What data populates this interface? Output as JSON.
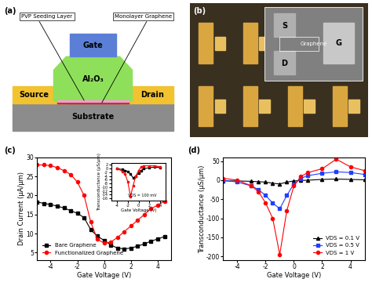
{
  "diagram": {
    "label": "(a)",
    "gate": "Gate",
    "dielectric": "Al₂O₃",
    "source": "Source",
    "drain": "Drain",
    "substrate": "Substrate",
    "seeding_layer": "PVP Seeding Layer",
    "channel": "Monolayer Graphene"
  },
  "micrograph": {
    "label": "(b)",
    "source": "S",
    "drain": "D",
    "gate": "G",
    "channel": "Graphene"
  },
  "chart_data": [
    {
      "type": "line",
      "annotation": "(c)",
      "x_label": "Gate Voltage (V)",
      "y_label": "Drain Current (μA/μm)",
      "xlim": [
        -5,
        5
      ],
      "xticks": [
        -4,
        -2,
        0,
        2,
        4
      ],
      "ylim": [
        3,
        30
      ],
      "yticks": [
        5,
        10,
        15,
        20,
        25,
        30
      ],
      "legend": "lower left",
      "x": [
        -5,
        -4.5,
        -4,
        -3.5,
        -3,
        -2.5,
        -2,
        -1.5,
        -1,
        -0.5,
        0,
        0.5,
        1,
        1.5,
        2,
        2.5,
        3,
        3.5,
        4,
        4.5
      ],
      "series": [
        {
          "name": "Bare Graphene",
          "color": "#000000",
          "marker": "square",
          "line_style": "solid",
          "values": [
            18.3,
            17.9,
            17.6,
            17.2,
            16.7,
            16.0,
            15.3,
            14.2,
            11.0,
            9.3,
            8.2,
            7.0,
            6.2,
            6.0,
            6.2,
            6.7,
            7.3,
            8.0,
            8.6,
            9.2
          ]
        },
        {
          "name": "Functionalized Graphene",
          "color": "#ff0000",
          "marker": "circle",
          "line_style": "solid",
          "values": [
            28.0,
            28.0,
            27.8,
            27.3,
            26.5,
            25.5,
            23.5,
            20.0,
            13.0,
            8.5,
            7.5,
            7.8,
            9.0,
            10.5,
            12.0,
            13.5,
            15.0,
            16.5,
            17.5,
            18.5
          ]
        }
      ]
    },
    {
      "type": "line",
      "annotation": "VDS = 100 mV",
      "x_label": "Gate Voltage (V)",
      "y_label": "Transconductance (μS/μm)",
      "xlim": [
        -5,
        5
      ],
      "xticks": [
        -4,
        -2,
        0,
        2,
        4
      ],
      "ylim": [
        -17,
        3
      ],
      "yticks": [
        2,
        0,
        -2,
        -4,
        -6,
        -8,
        -10,
        -12,
        -14,
        -16
      ],
      "x": [
        -4,
        -3,
        -2.5,
        -2,
        -1.5,
        -1,
        -0.5,
        0,
        0.5,
        1,
        2,
        3,
        4
      ],
      "series": [
        {
          "color": "#000000",
          "marker": "square",
          "line_style": "solid",
          "values": [
            0,
            -0.5,
            -1.0,
            -1.5,
            -3.0,
            -5.0,
            -4.0,
            -2.5,
            -1.0,
            0,
            0.5,
            0.8,
            0.5
          ]
        },
        {
          "color": "#ff0000",
          "marker": "circle",
          "line_style": "solid",
          "values": [
            0,
            -1.5,
            -3.0,
            -7.0,
            -15.0,
            -9.0,
            -4.0,
            -1.0,
            1.0,
            1.5,
            1.5,
            1.5,
            1.0
          ]
        }
      ]
    },
    {
      "type": "line",
      "annotation": "(d)",
      "x_label": "Gate Voltage (V)",
      "y_label": "Transconductance (μS/μm)",
      "xlim": [
        -5,
        5
      ],
      "xticks": [
        -4,
        -2,
        0,
        2,
        4
      ],
      "ylim": [
        -210,
        60
      ],
      "yticks": [
        -200,
        -150,
        -100,
        -50,
        0,
        50
      ],
      "legend": "lower right",
      "x": [
        -5,
        -4,
        -3,
        -2.5,
        -2,
        -1.5,
        -1,
        -0.5,
        0,
        0.5,
        1,
        2,
        3,
        4,
        5
      ],
      "series": [
        {
          "name": "VDS = 0.1 V",
          "color": "#000000",
          "marker": "triangle",
          "line_style": "solid",
          "values": [
            -2,
            -2,
            -3,
            -4,
            -5,
            -8,
            -10,
            -5,
            -2,
            -1,
            0,
            2,
            3,
            2,
            1
          ]
        },
        {
          "name": "VDS = 0.5 V",
          "color": "#1f3fff",
          "marker": "square",
          "line_style": "solid",
          "values": [
            0,
            -5,
            -15,
            -25,
            -40,
            -60,
            -75,
            -40,
            -10,
            5,
            12,
            18,
            22,
            20,
            15
          ]
        },
        {
          "name": "VDS = 1 V",
          "color": "#ff0000",
          "marker": "circle",
          "line_style": "solid",
          "values": [
            5,
            0,
            -15,
            -30,
            -60,
            -100,
            -195,
            -80,
            -15,
            10,
            20,
            30,
            55,
            35,
            25
          ]
        }
      ]
    }
  ]
}
